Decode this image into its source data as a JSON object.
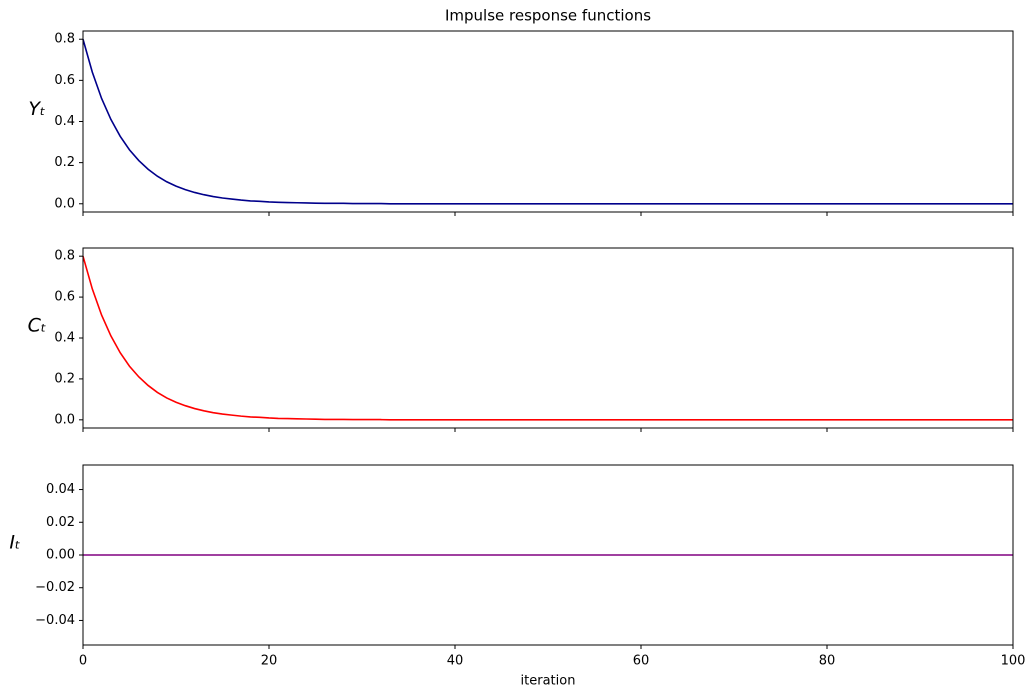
{
  "chart_data": [
    {
      "type": "line",
      "title": "Impulse response functions",
      "ylabel": "Yₜ",
      "x": [
        0,
        1,
        2,
        3,
        4,
        5,
        6,
        7,
        8,
        9,
        10,
        11,
        12,
        13,
        14,
        15,
        16,
        17,
        18,
        19,
        20,
        21,
        22,
        23,
        24,
        25,
        26,
        27,
        28,
        29,
        30,
        31,
        32,
        33,
        34,
        35,
        36,
        37,
        38,
        39,
        40,
        41,
        42,
        43,
        44,
        45,
        46,
        47,
        48,
        49,
        50,
        51,
        52,
        53,
        54,
        55,
        56,
        57,
        58,
        59,
        60,
        61,
        62,
        63,
        64,
        65,
        66,
        67,
        68,
        69,
        70,
        71,
        72,
        73,
        74,
        75,
        76,
        77,
        78,
        79,
        80,
        81,
        82,
        83,
        84,
        85,
        86,
        87,
        88,
        89,
        90,
        91,
        92,
        93,
        94,
        95,
        96,
        97,
        98,
        99,
        100
      ],
      "series": [
        {
          "color": "#00008b",
          "values": [
            0.8,
            0.64,
            0.512,
            0.41,
            0.328,
            0.262,
            0.21,
            0.168,
            0.134,
            0.107,
            0.086,
            0.069,
            0.055,
            0.044,
            0.035,
            0.028,
            0.023,
            0.018,
            0.014,
            0.012,
            0.009,
            0.007,
            0.006,
            0.005,
            0.004,
            0.003,
            0.002,
            0.002,
            0.002,
            0.001,
            0.001,
            0.001,
            0.001,
            0,
            0,
            0,
            0,
            0,
            0,
            0,
            0,
            0,
            0,
            0,
            0,
            0,
            0,
            0,
            0,
            0,
            0,
            0,
            0,
            0,
            0,
            0,
            0,
            0,
            0,
            0,
            0,
            0,
            0,
            0,
            0,
            0,
            0,
            0,
            0,
            0,
            0,
            0,
            0,
            0,
            0,
            0,
            0,
            0,
            0,
            0,
            0,
            0,
            0,
            0,
            0,
            0,
            0,
            0,
            0,
            0,
            0,
            0,
            0,
            0,
            0,
            0,
            0,
            0,
            0,
            0,
            0
          ]
        }
      ],
      "xlim": [
        0,
        100
      ],
      "xticks": [
        0,
        20,
        40,
        60,
        80,
        100
      ],
      "xtick_labels": false,
      "ylim": [
        -0.04,
        0.84
      ],
      "yticks": [
        {
          "value": 0,
          "label": "0.0"
        },
        0.2,
        0.4,
        0.6,
        0.8
      ]
    },
    {
      "type": "line",
      "ylabel": "Cₜ",
      "x": [
        0,
        1,
        2,
        3,
        4,
        5,
        6,
        7,
        8,
        9,
        10,
        11,
        12,
        13,
        14,
        15,
        16,
        17,
        18,
        19,
        20,
        21,
        22,
        23,
        24,
        25,
        26,
        27,
        28,
        29,
        30,
        31,
        32,
        33,
        34,
        35,
        36,
        37,
        38,
        39,
        40,
        41,
        42,
        43,
        44,
        45,
        46,
        47,
        48,
        49,
        50,
        51,
        52,
        53,
        54,
        55,
        56,
        57,
        58,
        59,
        60,
        61,
        62,
        63,
        64,
        65,
        66,
        67,
        68,
        69,
        70,
        71,
        72,
        73,
        74,
        75,
        76,
        77,
        78,
        79,
        80,
        81,
        82,
        83,
        84,
        85,
        86,
        87,
        88,
        89,
        90,
        91,
        92,
        93,
        94,
        95,
        96,
        97,
        98,
        99,
        100
      ],
      "series": [
        {
          "color": "#ff0000",
          "values": [
            0.8,
            0.64,
            0.512,
            0.41,
            0.328,
            0.262,
            0.21,
            0.168,
            0.134,
            0.107,
            0.086,
            0.069,
            0.055,
            0.044,
            0.035,
            0.028,
            0.023,
            0.018,
            0.014,
            0.012,
            0.009,
            0.007,
            0.006,
            0.005,
            0.004,
            0.003,
            0.002,
            0.002,
            0.002,
            0.001,
            0.001,
            0.001,
            0.001,
            0,
            0,
            0,
            0,
            0,
            0,
            0,
            0,
            0,
            0,
            0,
            0,
            0,
            0,
            0,
            0,
            0,
            0,
            0,
            0,
            0,
            0,
            0,
            0,
            0,
            0,
            0,
            0,
            0,
            0,
            0,
            0,
            0,
            0,
            0,
            0,
            0,
            0,
            0,
            0,
            0,
            0,
            0,
            0,
            0,
            0,
            0,
            0,
            0,
            0,
            0,
            0,
            0,
            0,
            0,
            0,
            0,
            0,
            0,
            0,
            0,
            0,
            0,
            0,
            0,
            0,
            0,
            0
          ]
        }
      ],
      "xlim": [
        0,
        100
      ],
      "xticks": [
        0,
        20,
        40,
        60,
        80,
        100
      ],
      "xtick_labels": false,
      "ylim": [
        -0.04,
        0.84
      ],
      "yticks": [
        {
          "value": 0,
          "label": "0.0"
        },
        0.2,
        0.4,
        0.6,
        0.8
      ]
    },
    {
      "type": "line",
      "ylabel": "Iₜ",
      "xlabel": "iteration",
      "x": [
        0,
        1,
        2,
        3,
        4,
        5,
        6,
        7,
        8,
        9,
        10,
        11,
        12,
        13,
        14,
        15,
        16,
        17,
        18,
        19,
        20,
        21,
        22,
        23,
        24,
        25,
        26,
        27,
        28,
        29,
        30,
        31,
        32,
        33,
        34,
        35,
        36,
        37,
        38,
        39,
        40,
        41,
        42,
        43,
        44,
        45,
        46,
        47,
        48,
        49,
        50,
        51,
        52,
        53,
        54,
        55,
        56,
        57,
        58,
        59,
        60,
        61,
        62,
        63,
        64,
        65,
        66,
        67,
        68,
        69,
        70,
        71,
        72,
        73,
        74,
        75,
        76,
        77,
        78,
        79,
        80,
        81,
        82,
        83,
        84,
        85,
        86,
        87,
        88,
        89,
        90,
        91,
        92,
        93,
        94,
        95,
        96,
        97,
        98,
        99,
        100
      ],
      "series": [
        {
          "color": "#800080",
          "values": [
            0,
            0,
            0,
            0,
            0,
            0,
            0,
            0,
            0,
            0,
            0,
            0,
            0,
            0,
            0,
            0,
            0,
            0,
            0,
            0,
            0,
            0,
            0,
            0,
            0,
            0,
            0,
            0,
            0,
            0,
            0,
            0,
            0,
            0,
            0,
            0,
            0,
            0,
            0,
            0,
            0,
            0,
            0,
            0,
            0,
            0,
            0,
            0,
            0,
            0,
            0,
            0,
            0,
            0,
            0,
            0,
            0,
            0,
            0,
            0,
            0,
            0,
            0,
            0,
            0,
            0,
            0,
            0,
            0,
            0,
            0,
            0,
            0,
            0,
            0,
            0,
            0,
            0,
            0,
            0,
            0,
            0,
            0,
            0,
            0,
            0,
            0,
            0,
            0,
            0,
            0,
            0,
            0,
            0,
            0,
            0,
            0,
            0,
            0,
            0,
            0
          ]
        }
      ],
      "xlim": [
        0,
        100
      ],
      "xticks": [
        0,
        20,
        40,
        60,
        80,
        100
      ],
      "xtick_labels": true,
      "ylim": [
        -0.055,
        0.055
      ],
      "yticks": [
        {
          "value": -0.04,
          "label": "−0.04"
        },
        {
          "value": -0.02,
          "label": "−0.02"
        },
        {
          "value": 0,
          "label": "0.00"
        },
        0.02,
        0.04
      ]
    }
  ]
}
